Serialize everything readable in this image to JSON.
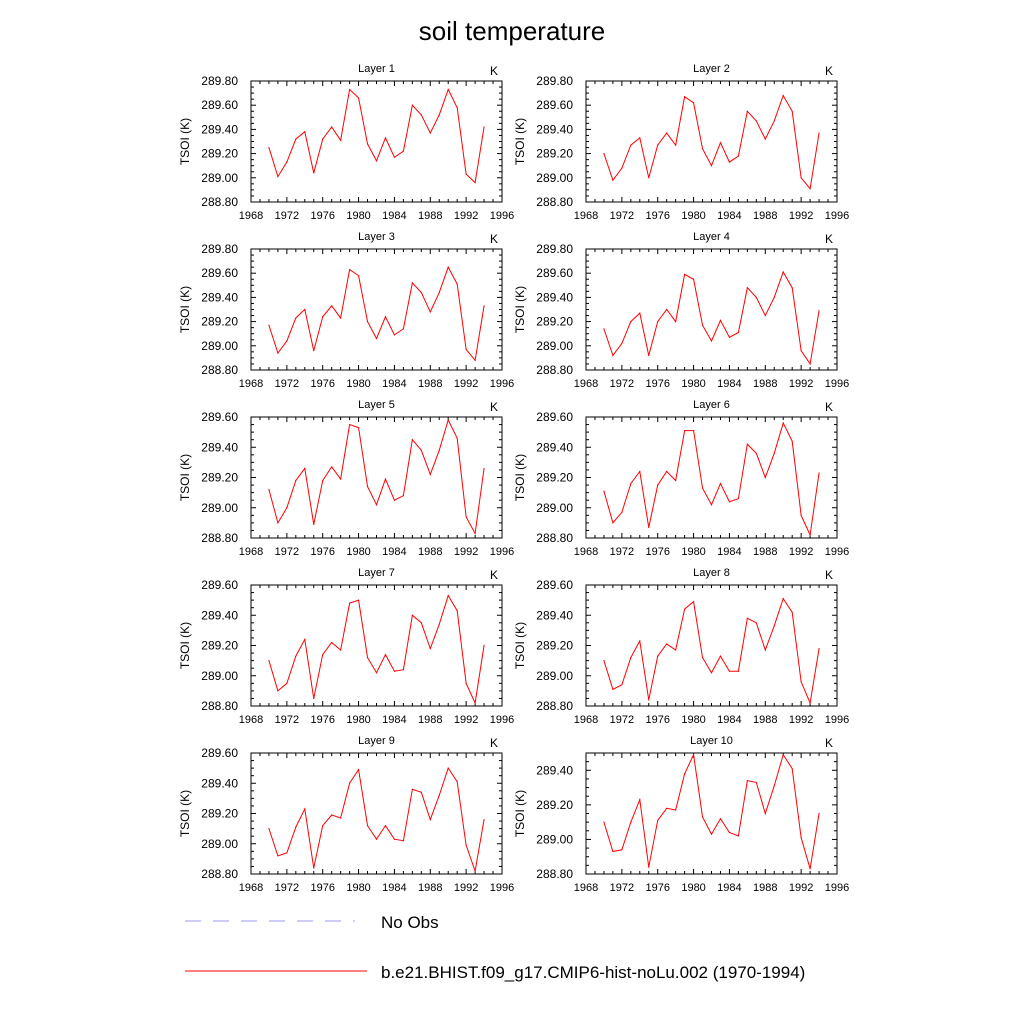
{
  "figure": {
    "title": "soil temperature",
    "legend": [
      {
        "label": "No Obs",
        "color": "#9999ee",
        "style": "dashed"
      },
      {
        "label": "b.e21.BHIST.f09_g17.CMIP6-hist-noLu.002 (1970-1994)",
        "color": "#ff0000",
        "style": "solid"
      }
    ]
  },
  "chart_data": [
    {
      "type": "line",
      "title": "Layer 1",
      "units": "K",
      "ylabel": "TSOI  (K)",
      "xlim": [
        1968,
        1996
      ],
      "ylim": [
        288.8,
        289.8
      ],
      "xticks": [
        "1968",
        "1972",
        "1976",
        "1980",
        "1984",
        "1988",
        "1992",
        "1996"
      ],
      "yticks": [
        "288.80",
        "289.00",
        "289.20",
        "289.40",
        "289.60",
        "289.80"
      ],
      "series": [
        {
          "color": "#ff0000",
          "x": [
            1970,
            1971,
            1972,
            1973,
            1974,
            1975,
            1976,
            1977,
            1978,
            1979,
            1980,
            1981,
            1982,
            1983,
            1984,
            1985,
            1986,
            1987,
            1988,
            1989,
            1990,
            1991,
            1992,
            1993,
            1994
          ],
          "values": [
            289.25,
            289.01,
            289.13,
            289.32,
            289.38,
            289.04,
            289.32,
            289.42,
            289.31,
            289.73,
            289.66,
            289.28,
            289.14,
            289.33,
            289.17,
            289.22,
            289.6,
            289.52,
            289.37,
            289.52,
            289.73,
            289.58,
            289.03,
            288.96,
            289.42
          ]
        }
      ]
    },
    {
      "type": "line",
      "title": "Layer 2",
      "units": "K",
      "ylabel": "TSOI  (K)",
      "xlim": [
        1968,
        1996
      ],
      "ylim": [
        288.8,
        289.8
      ],
      "xticks": [
        "1968",
        "1972",
        "1976",
        "1980",
        "1984",
        "1988",
        "1992",
        "1996"
      ],
      "yticks": [
        "288.80",
        "289.00",
        "289.20",
        "289.40",
        "289.60",
        "289.80"
      ],
      "series": [
        {
          "color": "#ff0000",
          "x": [
            1970,
            1971,
            1972,
            1973,
            1974,
            1975,
            1976,
            1977,
            1978,
            1979,
            1980,
            1981,
            1982,
            1983,
            1984,
            1985,
            1986,
            1987,
            1988,
            1989,
            1990,
            1991,
            1992,
            1993,
            1994
          ],
          "values": [
            289.2,
            288.98,
            289.08,
            289.27,
            289.33,
            289.0,
            289.27,
            289.37,
            289.27,
            289.67,
            289.62,
            289.24,
            289.1,
            289.29,
            289.13,
            289.18,
            289.55,
            289.47,
            289.32,
            289.47,
            289.68,
            289.55,
            289.0,
            288.91,
            289.37
          ]
        }
      ]
    },
    {
      "type": "line",
      "title": "Layer 3",
      "units": "K",
      "ylabel": "TSOI  (K)",
      "xlim": [
        1968,
        1996
      ],
      "ylim": [
        288.8,
        289.8
      ],
      "xticks": [
        "1968",
        "1972",
        "1976",
        "1980",
        "1984",
        "1988",
        "1992",
        "1996"
      ],
      "yticks": [
        "288.80",
        "289.00",
        "289.20",
        "289.40",
        "289.60",
        "289.80"
      ],
      "series": [
        {
          "color": "#ff0000",
          "x": [
            1970,
            1971,
            1972,
            1973,
            1974,
            1975,
            1976,
            1977,
            1978,
            1979,
            1980,
            1981,
            1982,
            1983,
            1984,
            1985,
            1986,
            1987,
            1988,
            1989,
            1990,
            1991,
            1992,
            1993,
            1994
          ],
          "values": [
            289.17,
            288.94,
            289.04,
            289.23,
            289.3,
            288.96,
            289.24,
            289.33,
            289.23,
            289.63,
            289.58,
            289.2,
            289.06,
            289.24,
            289.09,
            289.14,
            289.52,
            289.44,
            289.28,
            289.44,
            289.65,
            289.51,
            288.97,
            288.88,
            289.33
          ]
        }
      ]
    },
    {
      "type": "line",
      "title": "Layer 4",
      "units": "K",
      "ylabel": "TSOI  (K)",
      "xlim": [
        1968,
        1996
      ],
      "ylim": [
        288.8,
        289.8
      ],
      "xticks": [
        "1968",
        "1972",
        "1976",
        "1980",
        "1984",
        "1988",
        "1992",
        "1996"
      ],
      "yticks": [
        "288.80",
        "289.00",
        "289.20",
        "289.40",
        "289.60",
        "289.80"
      ],
      "series": [
        {
          "color": "#ff0000",
          "x": [
            1970,
            1971,
            1972,
            1973,
            1974,
            1975,
            1976,
            1977,
            1978,
            1979,
            1980,
            1981,
            1982,
            1983,
            1984,
            1985,
            1986,
            1987,
            1988,
            1989,
            1990,
            1991,
            1992,
            1993,
            1994
          ],
          "values": [
            289.14,
            288.92,
            289.02,
            289.2,
            289.27,
            288.92,
            289.2,
            289.3,
            289.2,
            289.59,
            289.55,
            289.17,
            289.04,
            289.21,
            289.07,
            289.11,
            289.48,
            289.4,
            289.25,
            289.4,
            289.61,
            289.48,
            288.96,
            288.85,
            289.29
          ]
        }
      ]
    },
    {
      "type": "line",
      "title": "Layer 5",
      "units": "K",
      "ylabel": "TSOI  (K)",
      "xlim": [
        1968,
        1996
      ],
      "ylim": [
        288.8,
        289.6
      ],
      "xticks": [
        "1968",
        "1972",
        "1976",
        "1980",
        "1984",
        "1988",
        "1992",
        "1996"
      ],
      "yticks": [
        "288.80",
        "289.00",
        "289.20",
        "289.40",
        "289.60"
      ],
      "series": [
        {
          "color": "#ff0000",
          "x": [
            1970,
            1971,
            1972,
            1973,
            1974,
            1975,
            1976,
            1977,
            1978,
            1979,
            1980,
            1981,
            1982,
            1983,
            1984,
            1985,
            1986,
            1987,
            1988,
            1989,
            1990,
            1991,
            1992,
            1993,
            1994
          ],
          "values": [
            289.12,
            288.9,
            289.0,
            289.18,
            289.26,
            288.89,
            289.18,
            289.27,
            289.19,
            289.55,
            289.53,
            289.14,
            289.02,
            289.19,
            289.05,
            289.08,
            289.45,
            289.38,
            289.22,
            289.38,
            289.58,
            289.46,
            288.94,
            288.83,
            289.26
          ]
        }
      ]
    },
    {
      "type": "line",
      "title": "Layer 6",
      "units": "K",
      "ylabel": "TSOI  (K)",
      "xlim": [
        1968,
        1996
      ],
      "ylim": [
        288.8,
        289.6
      ],
      "xticks": [
        "1968",
        "1972",
        "1976",
        "1980",
        "1984",
        "1988",
        "1992",
        "1996"
      ],
      "yticks": [
        "288.80",
        "289.00",
        "289.20",
        "289.40",
        "289.60"
      ],
      "series": [
        {
          "color": "#ff0000",
          "x": [
            1970,
            1971,
            1972,
            1973,
            1974,
            1975,
            1976,
            1977,
            1978,
            1979,
            1980,
            1981,
            1982,
            1983,
            1984,
            1985,
            1986,
            1987,
            1988,
            1989,
            1990,
            1991,
            1992,
            1993,
            1994
          ],
          "values": [
            289.11,
            288.9,
            288.97,
            289.16,
            289.24,
            288.87,
            289.15,
            289.24,
            289.18,
            289.51,
            289.51,
            289.13,
            289.02,
            289.16,
            289.04,
            289.06,
            289.42,
            289.36,
            289.2,
            289.36,
            289.56,
            289.44,
            288.95,
            288.82,
            289.23
          ]
        }
      ]
    },
    {
      "type": "line",
      "title": "Layer 7",
      "units": "K",
      "ylabel": "TSOI  (K)",
      "xlim": [
        1968,
        1996
      ],
      "ylim": [
        288.8,
        289.6
      ],
      "xticks": [
        "1968",
        "1972",
        "1976",
        "1980",
        "1984",
        "1988",
        "1992",
        "1996"
      ],
      "yticks": [
        "288.80",
        "289.00",
        "289.20",
        "289.40",
        "289.60"
      ],
      "series": [
        {
          "color": "#ff0000",
          "x": [
            1970,
            1971,
            1972,
            1973,
            1974,
            1975,
            1976,
            1977,
            1978,
            1979,
            1980,
            1981,
            1982,
            1983,
            1984,
            1985,
            1986,
            1987,
            1988,
            1989,
            1990,
            1991,
            1992,
            1993,
            1994
          ],
          "values": [
            289.1,
            288.9,
            288.95,
            289.13,
            289.24,
            288.85,
            289.14,
            289.22,
            289.17,
            289.48,
            289.5,
            289.12,
            289.02,
            289.14,
            289.03,
            289.04,
            289.4,
            289.35,
            289.18,
            289.34,
            289.53,
            289.43,
            288.95,
            288.82,
            289.2
          ]
        }
      ]
    },
    {
      "type": "line",
      "title": "Layer 8",
      "units": "K",
      "ylabel": "TSOI  (K)",
      "xlim": [
        1968,
        1996
      ],
      "ylim": [
        288.8,
        289.6
      ],
      "xticks": [
        "1968",
        "1972",
        "1976",
        "1980",
        "1984",
        "1988",
        "1992",
        "1996"
      ],
      "yticks": [
        "288.80",
        "289.00",
        "289.20",
        "289.40",
        "289.60"
      ],
      "series": [
        {
          "color": "#ff0000",
          "x": [
            1970,
            1971,
            1972,
            1973,
            1974,
            1975,
            1976,
            1977,
            1978,
            1979,
            1980,
            1981,
            1982,
            1983,
            1984,
            1985,
            1986,
            1987,
            1988,
            1989,
            1990,
            1991,
            1992,
            1993,
            1994
          ],
          "values": [
            289.1,
            288.91,
            288.94,
            289.12,
            289.23,
            288.84,
            289.13,
            289.21,
            289.17,
            289.44,
            289.49,
            289.12,
            289.02,
            289.13,
            289.03,
            289.03,
            289.38,
            289.35,
            289.17,
            289.33,
            289.51,
            289.42,
            288.96,
            288.82,
            289.18
          ]
        }
      ]
    },
    {
      "type": "line",
      "title": "Layer 9",
      "units": "K",
      "ylabel": "TSOI  (K)",
      "xlim": [
        1968,
        1996
      ],
      "ylim": [
        288.8,
        289.6
      ],
      "xticks": [
        "1968",
        "1972",
        "1976",
        "1980",
        "1984",
        "1988",
        "1992",
        "1996"
      ],
      "yticks": [
        "288.80",
        "289.00",
        "289.20",
        "289.40",
        "289.60"
      ],
      "series": [
        {
          "color": "#ff0000",
          "x": [
            1970,
            1971,
            1972,
            1973,
            1974,
            1975,
            1976,
            1977,
            1978,
            1979,
            1980,
            1981,
            1982,
            1983,
            1984,
            1985,
            1986,
            1987,
            1988,
            1989,
            1990,
            1991,
            1992,
            1993,
            1994
          ],
          "values": [
            289.1,
            288.92,
            288.94,
            289.11,
            289.23,
            288.84,
            289.12,
            289.19,
            289.17,
            289.4,
            289.49,
            289.12,
            289.03,
            289.12,
            289.03,
            289.02,
            289.36,
            289.34,
            289.16,
            289.32,
            289.5,
            289.41,
            288.99,
            288.82,
            289.16
          ]
        }
      ]
    },
    {
      "type": "line",
      "title": "Layer 10",
      "units": "K",
      "ylabel": "TSOI  (K)",
      "xlim": [
        1968,
        1996
      ],
      "ylim": [
        288.8,
        289.5
      ],
      "xticks": [
        "1968",
        "1972",
        "1976",
        "1980",
        "1984",
        "1988",
        "1992",
        "1996"
      ],
      "yticks": [
        "288.80",
        "289.00",
        "289.20",
        "289.40"
      ],
      "series": [
        {
          "color": "#ff0000",
          "x": [
            1970,
            1971,
            1972,
            1973,
            1974,
            1975,
            1976,
            1977,
            1978,
            1979,
            1980,
            1981,
            1982,
            1983,
            1984,
            1985,
            1986,
            1987,
            1988,
            1989,
            1990,
            1991,
            1992,
            1993,
            1994
          ],
          "values": [
            289.1,
            288.93,
            288.94,
            289.1,
            289.23,
            288.84,
            289.11,
            289.18,
            289.17,
            289.38,
            289.49,
            289.13,
            289.03,
            289.12,
            289.04,
            289.02,
            289.34,
            289.33,
            289.15,
            289.31,
            289.49,
            289.41,
            289.01,
            288.83,
            289.15
          ]
        }
      ]
    }
  ]
}
